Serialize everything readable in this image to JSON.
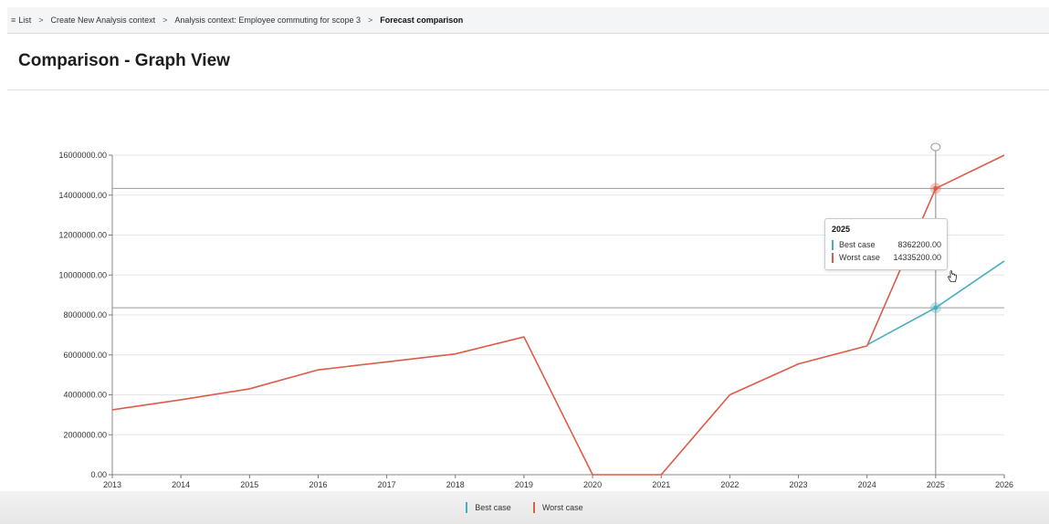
{
  "breadcrumb": {
    "menu_icon": "menu-icon",
    "items": [
      "List",
      "Create New Analysis context",
      "Analysis context: Employee commuting for scope 3",
      "Forecast comparison"
    ],
    "separator": ">"
  },
  "page": {
    "title": "Comparison - Graph View"
  },
  "colors": {
    "best_case": "#4aaec0",
    "worst_case": "#dd5b47",
    "grid": "#e3e6ea",
    "crosshair": "#9a9a9a"
  },
  "tooltip": {
    "title": "2025",
    "rows": [
      {
        "name": "Best case",
        "value": "8362200.00"
      },
      {
        "name": "Worst case",
        "value": "14335200.00"
      }
    ]
  },
  "legend": [
    "Best case",
    "Worst case"
  ],
  "chart_data": {
    "type": "line",
    "title": "",
    "xlabel": "",
    "ylabel": "",
    "x": [
      "2013",
      "2014",
      "2015",
      "2016",
      "2017",
      "2018",
      "2019",
      "2020",
      "2021",
      "2022",
      "2023",
      "2024",
      "2025",
      "2026"
    ],
    "ylim": [
      0,
      16000000
    ],
    "yticks": [
      "0.00",
      "2000000.00",
      "4000000.00",
      "6000000.00",
      "8000000.00",
      "10000000.00",
      "12000000.00",
      "14000000.00",
      "16000000.00"
    ],
    "grid": true,
    "legend_position": "bottom",
    "highlight_x": "2025",
    "series": [
      {
        "name": "Best case",
        "color": "#4aaec0",
        "values": [
          null,
          null,
          null,
          null,
          null,
          null,
          null,
          null,
          null,
          null,
          null,
          6500000,
          8362200,
          10700000
        ]
      },
      {
        "name": "Worst case",
        "color": "#dd5b47",
        "values": [
          3250000,
          3750000,
          4300000,
          5250000,
          5650000,
          6050000,
          6900000,
          0,
          0,
          4000000,
          5550000,
          6450000,
          14335200,
          16000000
        ]
      }
    ]
  }
}
